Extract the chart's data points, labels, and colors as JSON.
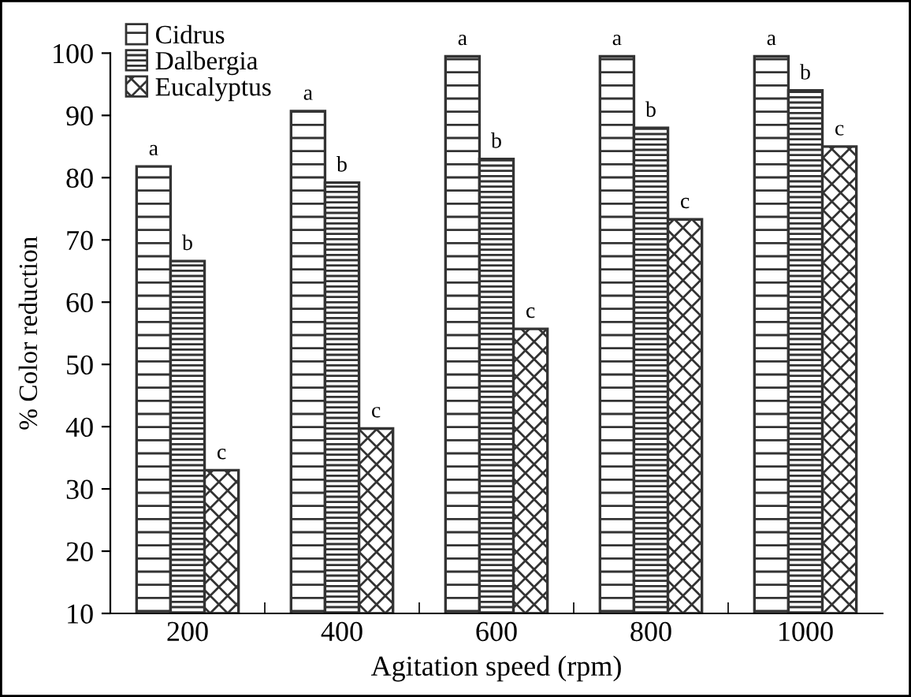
{
  "chart_data": {
    "type": "bar",
    "xlabel": "Agitation speed (rpm)",
    "ylabel": "% Color reduction",
    "categories": [
      "200",
      "400",
      "600",
      "800",
      "1000"
    ],
    "series": [
      {
        "name": "Cidrus",
        "color": "#333333",
        "values": [
          81.8,
          90.7,
          99.5,
          99.5,
          99.5
        ],
        "value_labels": [
          "a",
          "a",
          "a",
          "a",
          "a"
        ]
      },
      {
        "name": "Dalbergia",
        "color": "#333333",
        "values": [
          66.6,
          79.2,
          83,
          88,
          94
        ],
        "value_labels": [
          "b",
          "b",
          "b",
          "b",
          "b"
        ]
      },
      {
        "name": "Eucalyptus",
        "color": "#333333",
        "values": [
          33,
          39.7,
          55.7,
          73.3,
          85
        ],
        "value_labels": [
          "c",
          "c",
          "c",
          "c",
          "c"
        ]
      }
    ],
    "ylim": [
      10,
      100
    ],
    "yticks": [
      10,
      20,
      30,
      40,
      50,
      60,
      70,
      80,
      90,
      100
    ],
    "grid": false,
    "legend": "top left"
  }
}
